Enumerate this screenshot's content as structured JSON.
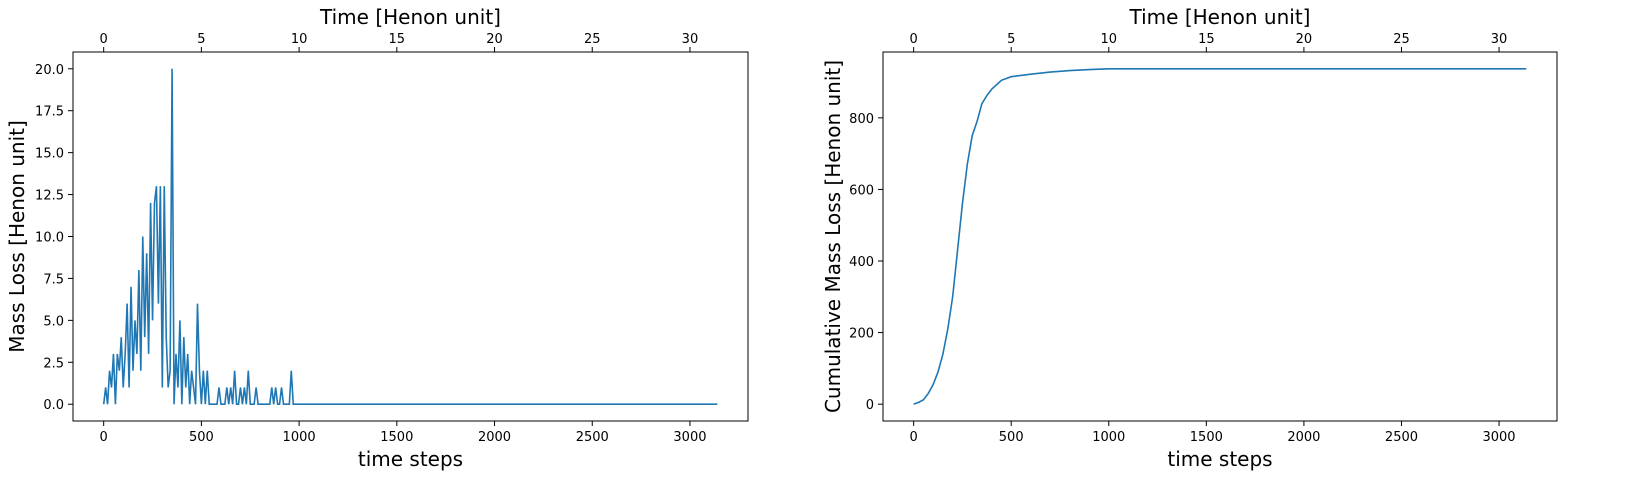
{
  "chart_data": [
    {
      "type": "line",
      "xlabel": "time steps",
      "ylabel": "Mass Loss [Henon unit]",
      "x2label": "Time [Henon unit]",
      "x": [
        0,
        10,
        20,
        30,
        40,
        50,
        60,
        70,
        80,
        90,
        100,
        110,
        120,
        130,
        140,
        150,
        160,
        170,
        180,
        190,
        200,
        210,
        220,
        230,
        240,
        250,
        260,
        270,
        280,
        290,
        300,
        310,
        320,
        330,
        340,
        350,
        360,
        370,
        380,
        390,
        400,
        410,
        420,
        430,
        440,
        450,
        460,
        470,
        480,
        490,
        500,
        510,
        520,
        530,
        540,
        550,
        560,
        570,
        580,
        590,
        600,
        610,
        620,
        630,
        640,
        650,
        660,
        670,
        680,
        690,
        700,
        710,
        720,
        730,
        740,
        750,
        760,
        770,
        780,
        790,
        800,
        810,
        820,
        830,
        840,
        850,
        860,
        870,
        880,
        890,
        900,
        910,
        920,
        930,
        940,
        950,
        960,
        970,
        980,
        990,
        1000,
        3140
      ],
      "series": [
        {
          "color": "#1f77b4",
          "values": [
            0,
            1,
            0,
            2,
            1,
            3,
            0,
            3,
            2,
            4,
            1,
            3,
            6,
            1,
            7,
            2,
            5,
            3,
            8,
            2,
            10,
            4,
            9,
            3,
            12,
            5,
            12,
            13,
            6,
            13,
            1,
            13,
            4,
            1,
            2,
            20,
            0,
            3,
            1,
            5,
            0,
            4,
            1,
            3,
            0,
            2,
            1,
            0,
            6,
            2,
            0,
            2,
            0,
            2,
            0,
            0,
            0,
            0,
            0,
            1,
            0,
            0,
            0,
            1,
            0,
            1,
            0,
            2,
            0,
            0,
            1,
            0,
            1,
            0,
            2,
            0,
            0,
            0,
            1,
            0,
            0,
            0,
            0,
            0,
            0,
            0,
            1,
            0,
            1,
            0,
            0,
            1,
            0,
            0,
            0,
            0,
            2,
            0,
            0,
            0,
            0,
            0
          ]
        }
      ],
      "xlim": [
        -157,
        3297
      ],
      "xticks": [
        0,
        500,
        1000,
        1500,
        2000,
        2500,
        3000
      ],
      "x2lim": [
        -1.57,
        32.97
      ],
      "x2ticks": [
        0,
        5,
        10,
        15,
        20,
        25,
        30
      ],
      "ylim": [
        -1,
        21
      ],
      "yticks": [
        {
          "value": 0,
          "label": "0.0"
        },
        {
          "value": 2.5,
          "label": "2.5"
        },
        {
          "value": 5,
          "label": "5.0"
        },
        {
          "value": 7.5,
          "label": "7.5"
        },
        {
          "value": 10,
          "label": "10.0"
        },
        {
          "value": 12.5,
          "label": "12.5"
        },
        {
          "value": 15,
          "label": "15.0"
        },
        {
          "value": 17.5,
          "label": "17.5"
        },
        {
          "value": 20,
          "label": "20.0"
        }
      ]
    },
    {
      "type": "line",
      "xlabel": "time steps",
      "ylabel": "Cumulative Mass Loss [Henon unit]",
      "x2label": "Time [Henon unit]",
      "x": [
        0,
        25,
        50,
        75,
        100,
        125,
        150,
        175,
        200,
        225,
        250,
        275,
        300,
        325,
        350,
        375,
        400,
        450,
        500,
        600,
        700,
        800,
        900,
        1000,
        3140
      ],
      "series": [
        {
          "color": "#1f77b4",
          "values": [
            0,
            5,
            12,
            30,
            55,
            90,
            140,
            210,
            300,
            430,
            560,
            670,
            750,
            790,
            840,
            862,
            880,
            905,
            915,
            922,
            928,
            932,
            935,
            937,
            937
          ]
        }
      ],
      "xlim": [
        -157,
        3297
      ],
      "xticks": [
        0,
        500,
        1000,
        1500,
        2000,
        2500,
        3000
      ],
      "x2lim": [
        -1.57,
        32.97
      ],
      "x2ticks": [
        0,
        5,
        10,
        15,
        20,
        25,
        30
      ],
      "ylim": [
        -47,
        984
      ],
      "yticks": [
        0,
        200,
        400,
        600,
        800
      ]
    }
  ]
}
